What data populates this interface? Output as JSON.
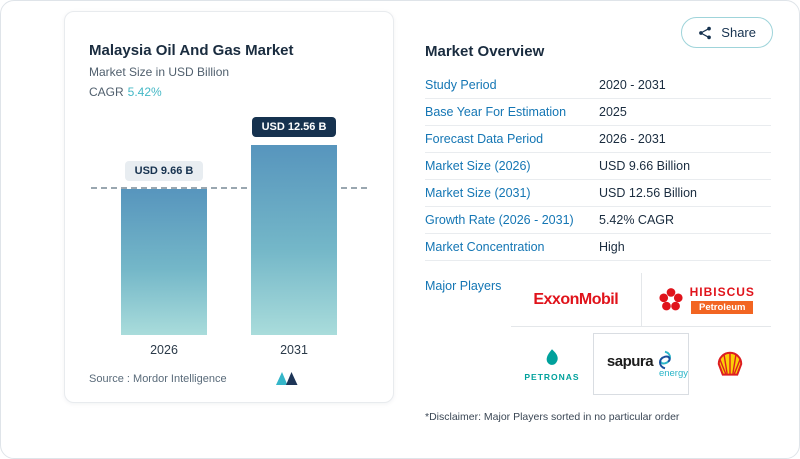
{
  "colors": {
    "accent_blue": "#1476B4",
    "teal": "#45B8C6",
    "navy": "#16324F",
    "bar_gradient_top": "#5795BD",
    "bar_gradient_bottom": "#A9DCDB",
    "exxon_red": "#E0131B",
    "hibiscus_orange": "#F26522",
    "petronas_green": "#00A19C",
    "shell_yellow": "#FBCE07",
    "shell_red": "#DD1D21"
  },
  "share": {
    "label": "Share",
    "icon": "share-nodes-icon"
  },
  "card": {
    "title": "Malaysia Oil And Gas Market",
    "subtitle": "Market Size in USD Billion",
    "cagr_label": "CAGR",
    "cagr_value": "5.42%",
    "source_label": "Source :",
    "source_value": "Mordor Intelligence",
    "logo_icon": "mordor-intelligence-mark"
  },
  "chart_data": {
    "type": "bar",
    "categories": [
      "2026",
      "2031"
    ],
    "values": [
      9.66,
      12.56
    ],
    "value_labels": [
      "USD 9.66 B",
      "USD 12.56 B"
    ],
    "title": "Malaysia Oil And Gas Market",
    "ylabel": "Market Size in USD Billion",
    "ylim": [
      0,
      12.56
    ],
    "reference_line_value": 9.66,
    "grid": false,
    "legend": false
  },
  "overview": {
    "title": "Market Overview",
    "rows": [
      {
        "label": "Study Period",
        "value": "2020 - 2031"
      },
      {
        "label": "Base Year For Estimation",
        "value": "2025"
      },
      {
        "label": "Forecast Data Period",
        "value": "2026 - 2031"
      },
      {
        "label": "Market Size (2026)",
        "value": "USD 9.66 Billion"
      },
      {
        "label": "Market Size (2031)",
        "value": "USD 12.56 Billion"
      },
      {
        "label": "Growth Rate (2026 - 2031)",
        "value": "5.42% CAGR"
      },
      {
        "label": "Market Concentration",
        "value": "High"
      }
    ],
    "major_players_label": "Major Players",
    "players": {
      "exxonmobil": "ExxonMobil",
      "hibiscus_name": "HIBISCUS",
      "hibiscus_sub": "Petroleum",
      "petronas": "PETRONAS",
      "sapura": "sapura",
      "sapura_sub": "energy",
      "shell_icon": "shell-pecten-icon",
      "petronas_icon": "petronas-teardrop-icon",
      "hibiscus_icon": "hibiscus-flower-icon",
      "sapura_icon": "sapura-swirl-icon"
    },
    "disclaimer": "*Disclaimer: Major Players sorted in no particular order"
  }
}
